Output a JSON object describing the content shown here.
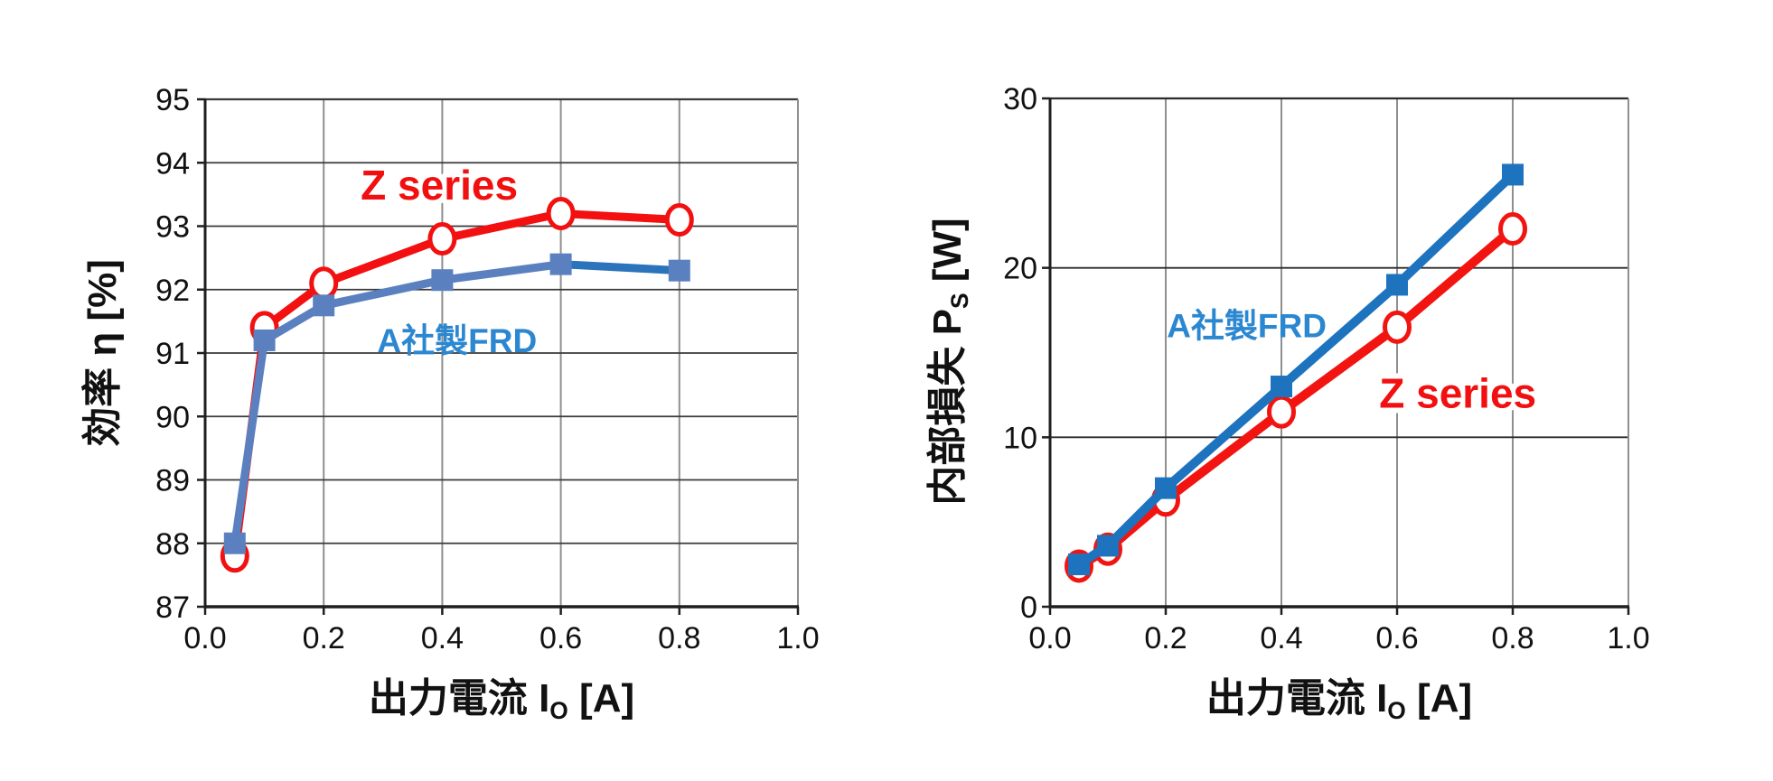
{
  "background": "#ffffff",
  "chart_data": [
    {
      "type": "line",
      "title": "",
      "xlabel_parts": [
        {
          "t": "出力電流 I"
        },
        {
          "t": "O",
          "sub": true
        },
        {
          "t": " [A]"
        }
      ],
      "ylabel_parts": [
        {
          "t": "効率 η [%]"
        }
      ],
      "xlabel_text": "出力電流 Io [A]",
      "ylabel_text": "効率 η [%]",
      "xlim": [
        0.0,
        1.0
      ],
      "ylim": [
        87,
        95
      ],
      "xticks": [
        0.0,
        0.2,
        0.4,
        0.6,
        0.8,
        1.0
      ],
      "xtick_labels": [
        "0.0",
        "0.2",
        "0.4",
        "0.6",
        "0.8",
        "1.0"
      ],
      "yticks": [
        87,
        88,
        89,
        90,
        91,
        92,
        93,
        94,
        95
      ],
      "ytick_labels": [
        "87",
        "88",
        "89",
        "90",
        "91",
        "92",
        "93",
        "94",
        "95"
      ],
      "grid": true,
      "legend_position": "inline-annotations",
      "style": {
        "vgrid_color": "#8f8f8f",
        "hgrid_color": "#3a3a3a",
        "axis_color": "#1f1f1f",
        "tick_label_color": "#111111"
      },
      "x": [
        0.05,
        0.1,
        0.2,
        0.4,
        0.6,
        0.8
      ],
      "series": [
        {
          "name": "Z series",
          "color": "#f21010",
          "marker": "circle-open",
          "width": 9,
          "values": [
            87.8,
            91.4,
            92.1,
            92.8,
            93.2,
            93.1
          ]
        },
        {
          "name": "A社製FRD",
          "color": "#5b80c0",
          "marker": "square",
          "width": 9,
          "segment_colors": [
            null,
            null,
            null,
            null,
            "#2b73bb"
          ],
          "values": [
            88.0,
            91.2,
            91.75,
            92.15,
            92.4,
            92.3
          ]
        }
      ],
      "annotations": [
        {
          "text": "Z series",
          "x": 0.395,
          "y": 93.65,
          "color": "#f20f0f",
          "size": 46,
          "weight": 800,
          "outline": "#ffffff",
          "outline_w": 12
        },
        {
          "text": "A社製FRD",
          "x": 0.425,
          "y": 91.2,
          "color": "#2b87d0",
          "size": 37,
          "weight": 600
        }
      ]
    },
    {
      "type": "line",
      "title": "",
      "xlabel_parts": [
        {
          "t": "出力電流 I"
        },
        {
          "t": "O",
          "sub": true
        },
        {
          "t": " [A]"
        }
      ],
      "ylabel_parts": [
        {
          "t": "内部損失 P"
        },
        {
          "t": "S",
          "sub": true
        },
        {
          "t": " [W]"
        }
      ],
      "xlabel_text": "出力電流 Io [A]",
      "ylabel_text": "内部損失 Ps [W]",
      "xlim": [
        0.0,
        1.0
      ],
      "ylim": [
        0,
        30
      ],
      "xticks": [
        0.0,
        0.2,
        0.4,
        0.6,
        0.8,
        1.0
      ],
      "xtick_labels": [
        "0.0",
        "0.2",
        "0.4",
        "0.6",
        "0.8",
        "1.0"
      ],
      "yticks": [
        0,
        10,
        20,
        30
      ],
      "ytick_labels": [
        "0",
        "10",
        "20",
        "30"
      ],
      "grid": true,
      "legend_position": "inline-annotations",
      "style": {
        "vgrid_color": "#8f8f8f",
        "hgrid_color": "#2b2b2b",
        "axis_color": "#1f1f1f",
        "tick_label_color": "#111111"
      },
      "x": [
        0.05,
        0.1,
        0.2,
        0.4,
        0.6,
        0.8
      ],
      "series": [
        {
          "name": "Z series",
          "color": "#f21410",
          "marker": "circle-open",
          "width": 10,
          "values": [
            2.4,
            3.4,
            6.3,
            11.5,
            16.5,
            22.3
          ]
        },
        {
          "name": "A社製FRD",
          "color": "#1e73be",
          "marker": "square",
          "width": 10,
          "values": [
            2.5,
            3.6,
            7.0,
            13.0,
            19.0,
            25.5
          ]
        }
      ],
      "annotations": [
        {
          "text": "A社製FRD",
          "x": 0.34,
          "y": 16.6,
          "color": "#2b87d0",
          "size": 37,
          "weight": 600
        },
        {
          "text": "Z series",
          "x": 0.705,
          "y": 12.6,
          "color": "#f20f0f",
          "size": 46,
          "weight": 800,
          "outline": "#ffffff",
          "outline_w": 12
        }
      ]
    }
  ]
}
